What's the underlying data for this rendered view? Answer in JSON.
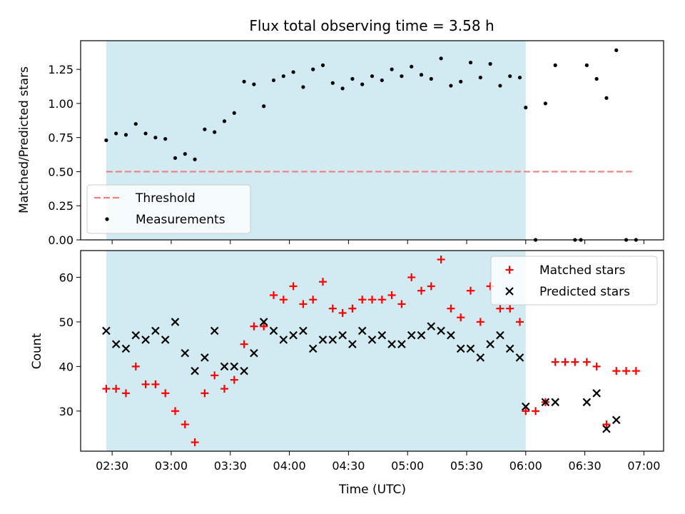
{
  "chart_data": [
    {
      "type": "scatter",
      "title": "Flux total observing time = 3.58 h",
      "ylabel": "Matched/Predicted stars",
      "ylim": [
        0,
        1.46
      ],
      "yticks": [
        "0.00",
        "0.25",
        "0.50",
        "0.75",
        "1.00",
        "1.25"
      ],
      "ytick_values": [
        0,
        0.25,
        0.5,
        0.75,
        1.0,
        1.25
      ],
      "shaded_region": [
        "02:27",
        "06:00"
      ],
      "shade_color": "#add8e6",
      "threshold": {
        "name": "Threshold",
        "value": 0.5,
        "x_range": [
          "02:27",
          "06:55"
        ],
        "color": "#f08080"
      },
      "legend": {
        "position": "lower-left",
        "entries": [
          "Threshold",
          "Measurements"
        ]
      },
      "series": [
        {
          "name": "Measurements",
          "color": "#000000",
          "marker": "dot",
          "points": [
            [
              "02:27",
              0.73
            ],
            [
              "02:32",
              0.78
            ],
            [
              "02:37",
              0.77
            ],
            [
              "02:42",
              0.85
            ],
            [
              "02:47",
              0.78
            ],
            [
              "02:52",
              0.75
            ],
            [
              "02:57",
              0.74
            ],
            [
              "03:02",
              0.6
            ],
            [
              "03:07",
              0.63
            ],
            [
              "03:12",
              0.59
            ],
            [
              "03:17",
              0.81
            ],
            [
              "03:22",
              0.79
            ],
            [
              "03:27",
              0.87
            ],
            [
              "03:32",
              0.93
            ],
            [
              "03:37",
              1.16
            ],
            [
              "03:42",
              1.14
            ],
            [
              "03:47",
              0.98
            ],
            [
              "03:52",
              1.17
            ],
            [
              "03:57",
              1.2
            ],
            [
              "04:02",
              1.23
            ],
            [
              "04:07",
              1.12
            ],
            [
              "04:12",
              1.25
            ],
            [
              "04:17",
              1.28
            ],
            [
              "04:22",
              1.15
            ],
            [
              "04:27",
              1.11
            ],
            [
              "04:32",
              1.18
            ],
            [
              "04:37",
              1.14
            ],
            [
              "04:42",
              1.2
            ],
            [
              "04:47",
              1.17
            ],
            [
              "04:52",
              1.25
            ],
            [
              "04:57",
              1.2
            ],
            [
              "05:02",
              1.27
            ],
            [
              "05:07",
              1.21
            ],
            [
              "05:12",
              1.18
            ],
            [
              "05:17",
              1.33
            ],
            [
              "05:22",
              1.13
            ],
            [
              "05:27",
              1.16
            ],
            [
              "05:32",
              1.3
            ],
            [
              "05:37",
              1.19
            ],
            [
              "05:42",
              1.29
            ],
            [
              "05:47",
              1.13
            ],
            [
              "05:52",
              1.2
            ],
            [
              "05:57",
              1.19
            ],
            [
              "06:00",
              0.97
            ],
            [
              "06:05",
              0.0
            ],
            [
              "06:10",
              1.0
            ],
            [
              "06:15",
              1.28
            ],
            [
              "06:25",
              0.0
            ],
            [
              "06:28",
              0.0
            ],
            [
              "06:31",
              1.28
            ],
            [
              "06:36",
              1.18
            ],
            [
              "06:41",
              1.04
            ],
            [
              "06:46",
              1.39
            ],
            [
              "06:51",
              0.0
            ],
            [
              "06:56",
              0.0
            ]
          ]
        }
      ]
    },
    {
      "type": "scatter",
      "xlabel": "Time (UTC)",
      "ylabel": "Count",
      "ylim": [
        21,
        66
      ],
      "yticks": [
        "30",
        "40",
        "50",
        "60"
      ],
      "ytick_values": [
        30,
        40,
        50,
        60
      ],
      "xlim": [
        "02:14",
        "07:10"
      ],
      "xticks": [
        "02:30",
        "03:00",
        "03:30",
        "04:00",
        "04:30",
        "05:00",
        "05:30",
        "06:00",
        "06:30",
        "07:00"
      ],
      "shaded_region": [
        "02:27",
        "06:00"
      ],
      "shade_color": "#add8e6",
      "legend": {
        "position": "top-right",
        "entries": [
          "Matched stars",
          "Predicted stars"
        ]
      },
      "series": [
        {
          "name": "Matched stars",
          "color": "#ff0000",
          "marker": "plus",
          "points": [
            [
              "02:27",
              35
            ],
            [
              "02:32",
              35
            ],
            [
              "02:37",
              34
            ],
            [
              "02:42",
              40
            ],
            [
              "02:47",
              36
            ],
            [
              "02:52",
              36
            ],
            [
              "02:57",
              34
            ],
            [
              "03:02",
              30
            ],
            [
              "03:07",
              27
            ],
            [
              "03:12",
              23
            ],
            [
              "03:17",
              34
            ],
            [
              "03:22",
              38
            ],
            [
              "03:27",
              35
            ],
            [
              "03:32",
              37
            ],
            [
              "03:37",
              45
            ],
            [
              "03:42",
              49
            ],
            [
              "03:47",
              49
            ],
            [
              "03:52",
              56
            ],
            [
              "03:57",
              55
            ],
            [
              "04:02",
              58
            ],
            [
              "04:07",
              54
            ],
            [
              "04:12",
              55
            ],
            [
              "04:17",
              59
            ],
            [
              "04:22",
              53
            ],
            [
              "04:27",
              52
            ],
            [
              "04:32",
              53
            ],
            [
              "04:37",
              55
            ],
            [
              "04:42",
              55
            ],
            [
              "04:47",
              55
            ],
            [
              "04:52",
              56
            ],
            [
              "04:57",
              54
            ],
            [
              "05:02",
              60
            ],
            [
              "05:07",
              57
            ],
            [
              "05:12",
              58
            ],
            [
              "05:17",
              64
            ],
            [
              "05:22",
              53
            ],
            [
              "05:27",
              51
            ],
            [
              "05:32",
              57
            ],
            [
              "05:37",
              50
            ],
            [
              "05:42",
              58
            ],
            [
              "05:47",
              53
            ],
            [
              "05:52",
              53
            ],
            [
              "05:57",
              50
            ],
            [
              "06:00",
              30
            ],
            [
              "06:05",
              30
            ],
            [
              "06:10",
              32
            ],
            [
              "06:15",
              41
            ],
            [
              "06:20",
              41
            ],
            [
              "06:25",
              41
            ],
            [
              "06:31",
              41
            ],
            [
              "06:36",
              40
            ],
            [
              "06:41",
              27
            ],
            [
              "06:46",
              39
            ],
            [
              "06:51",
              39
            ],
            [
              "06:56",
              39
            ]
          ]
        },
        {
          "name": "Predicted stars",
          "color": "#000000",
          "marker": "x",
          "points": [
            [
              "02:27",
              48
            ],
            [
              "02:32",
              45
            ],
            [
              "02:37",
              44
            ],
            [
              "02:42",
              47
            ],
            [
              "02:47",
              46
            ],
            [
              "02:52",
              48
            ],
            [
              "02:57",
              46
            ],
            [
              "03:02",
              50
            ],
            [
              "03:07",
              43
            ],
            [
              "03:12",
              39
            ],
            [
              "03:17",
              42
            ],
            [
              "03:22",
              48
            ],
            [
              "03:27",
              40
            ],
            [
              "03:32",
              40
            ],
            [
              "03:37",
              39
            ],
            [
              "03:42",
              43
            ],
            [
              "03:47",
              50
            ],
            [
              "03:52",
              48
            ],
            [
              "03:57",
              46
            ],
            [
              "04:02",
              47
            ],
            [
              "04:07",
              48
            ],
            [
              "04:12",
              44
            ],
            [
              "04:17",
              46
            ],
            [
              "04:22",
              46
            ],
            [
              "04:27",
              47
            ],
            [
              "04:32",
              45
            ],
            [
              "04:37",
              48
            ],
            [
              "04:42",
              46
            ],
            [
              "04:47",
              47
            ],
            [
              "04:52",
              45
            ],
            [
              "04:57",
              45
            ],
            [
              "05:02",
              47
            ],
            [
              "05:07",
              47
            ],
            [
              "05:12",
              49
            ],
            [
              "05:17",
              48
            ],
            [
              "05:22",
              47
            ],
            [
              "05:27",
              44
            ],
            [
              "05:32",
              44
            ],
            [
              "05:37",
              42
            ],
            [
              "05:42",
              45
            ],
            [
              "05:47",
              47
            ],
            [
              "05:52",
              44
            ],
            [
              "05:57",
              42
            ],
            [
              "06:00",
              31
            ],
            [
              "06:10",
              32
            ],
            [
              "06:15",
              32
            ],
            [
              "06:31",
              32
            ],
            [
              "06:36",
              34
            ],
            [
              "06:41",
              26
            ],
            [
              "06:46",
              28
            ]
          ]
        }
      ]
    }
  ]
}
